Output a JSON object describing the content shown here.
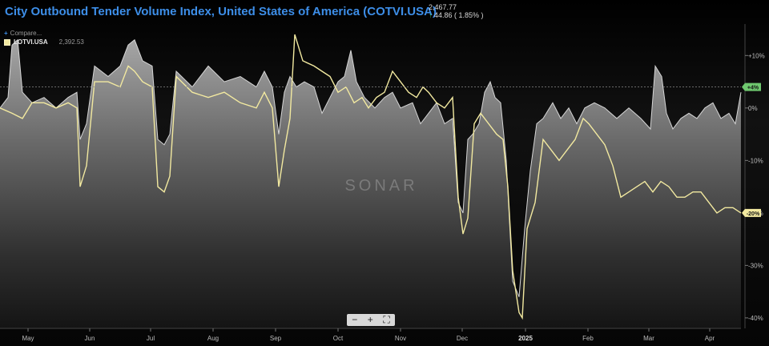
{
  "header": {
    "title": "City Outbound Tender Volume Index, United States of America (COTVI.USA)",
    "last_value": "2,467.77",
    "change_arrow": "↑",
    "change": "44.86 ( 1.85% )"
  },
  "compare_label": "Compare...",
  "legend": {
    "name": "LOTVI.USA",
    "value": "2,392.53"
  },
  "watermark": "SONAR",
  "zoom": {
    "minus": "−",
    "plus": "+",
    "fullscreen": "⛶"
  },
  "colors": {
    "background": "#000000",
    "title": "#3d8ee8",
    "area_line": "#ffffff",
    "lotvi_line": "#f2e9a0",
    "badge_green": "#6fc86f",
    "badge_yellow": "#f2e9a0"
  },
  "chart_data": {
    "type": "area",
    "x_axis": {
      "tick_labels": [
        "May",
        "Jun",
        "Jul",
        "Aug",
        "Sep",
        "Oct",
        "Nov",
        "Dec",
        "2025",
        "Feb",
        "Mar",
        "Apr"
      ]
    },
    "y_axis": {
      "unit": "% change",
      "ticks": [
        10,
        0,
        -10,
        -20,
        -30,
        -40
      ],
      "tick_labels": [
        "+10%",
        "0%",
        "-10%",
        "-20%",
        "-30%",
        "-40%"
      ],
      "ylim": [
        -42,
        16
      ]
    },
    "series": [
      {
        "name": "COTVI.USA",
        "style": "area",
        "current_label": "+4%",
        "points": [
          [
            0,
            0
          ],
          [
            10,
            2
          ],
          [
            15,
            12
          ],
          [
            22,
            13
          ],
          [
            28,
            3
          ],
          [
            40,
            1
          ],
          [
            55,
            2
          ],
          [
            70,
            0
          ],
          [
            85,
            2
          ],
          [
            96,
            3
          ],
          [
            100,
            -6
          ],
          [
            108,
            -3
          ],
          [
            118,
            8
          ],
          [
            135,
            6
          ],
          [
            150,
            8
          ],
          [
            160,
            12
          ],
          [
            168,
            13
          ],
          [
            178,
            9
          ],
          [
            190,
            8
          ],
          [
            197,
            -6
          ],
          [
            205,
            -7
          ],
          [
            212,
            -5
          ],
          [
            220,
            7
          ],
          [
            240,
            4
          ],
          [
            260,
            8
          ],
          [
            280,
            5
          ],
          [
            300,
            6
          ],
          [
            320,
            4
          ],
          [
            330,
            7
          ],
          [
            340,
            4
          ],
          [
            348,
            -5
          ],
          [
            355,
            3
          ],
          [
            362,
            6
          ],
          [
            370,
            4
          ],
          [
            380,
            5
          ],
          [
            392,
            4
          ],
          [
            402,
            -1
          ],
          [
            412,
            2
          ],
          [
            422,
            5
          ],
          [
            430,
            6
          ],
          [
            438,
            11
          ],
          [
            445,
            5
          ],
          [
            455,
            2
          ],
          [
            468,
            0
          ],
          [
            480,
            2
          ],
          [
            490,
            3
          ],
          [
            500,
            0
          ],
          [
            515,
            1
          ],
          [
            525,
            -3
          ],
          [
            535,
            -1
          ],
          [
            545,
            1
          ],
          [
            555,
            -3
          ],
          [
            565,
            -2
          ],
          [
            572,
            -18
          ],
          [
            578,
            -20
          ],
          [
            584,
            -6
          ],
          [
            590,
            -5
          ],
          [
            598,
            -3
          ],
          [
            605,
            3
          ],
          [
            612,
            5
          ],
          [
            618,
            2
          ],
          [
            625,
            1
          ],
          [
            632,
            -10
          ],
          [
            640,
            -33
          ],
          [
            648,
            -36
          ],
          [
            655,
            -23
          ],
          [
            662,
            -12
          ],
          [
            670,
            -3
          ],
          [
            678,
            -2
          ],
          [
            690,
            1
          ],
          [
            700,
            -2
          ],
          [
            710,
            0
          ],
          [
            720,
            -3
          ],
          [
            730,
            0
          ],
          [
            742,
            1
          ],
          [
            755,
            0
          ],
          [
            770,
            -2
          ],
          [
            785,
            0
          ],
          [
            800,
            -2
          ],
          [
            812,
            -4
          ],
          [
            818,
            8
          ],
          [
            826,
            6
          ],
          [
            832,
            -1
          ],
          [
            840,
            -4
          ],
          [
            850,
            -2
          ],
          [
            860,
            -1
          ],
          [
            870,
            -2
          ],
          [
            880,
            0
          ],
          [
            890,
            1
          ],
          [
            900,
            -2
          ],
          [
            910,
            -1
          ],
          [
            918,
            -3
          ],
          [
            925,
            3
          ]
        ]
      },
      {
        "name": "LOTVI.USA",
        "style": "line",
        "current_label": "-20%",
        "points": [
          [
            0,
            0
          ],
          [
            15,
            -1
          ],
          [
            28,
            -2
          ],
          [
            40,
            1
          ],
          [
            55,
            1
          ],
          [
            70,
            0
          ],
          [
            85,
            1
          ],
          [
            96,
            0
          ],
          [
            100,
            -15
          ],
          [
            108,
            -11
          ],
          [
            118,
            5
          ],
          [
            135,
            5
          ],
          [
            150,
            4
          ],
          [
            160,
            8
          ],
          [
            168,
            7
          ],
          [
            178,
            5
          ],
          [
            190,
            4
          ],
          [
            197,
            -15
          ],
          [
            205,
            -16
          ],
          [
            212,
            -13
          ],
          [
            220,
            6
          ],
          [
            240,
            3
          ],
          [
            260,
            2
          ],
          [
            280,
            3
          ],
          [
            300,
            1
          ],
          [
            320,
            0
          ],
          [
            330,
            3
          ],
          [
            340,
            0
          ],
          [
            348,
            -15
          ],
          [
            355,
            -8
          ],
          [
            362,
            -2
          ],
          [
            368,
            14
          ],
          [
            378,
            9
          ],
          [
            392,
            8
          ],
          [
            402,
            7
          ],
          [
            412,
            6
          ],
          [
            422,
            3
          ],
          [
            432,
            4
          ],
          [
            442,
            1
          ],
          [
            452,
            2
          ],
          [
            460,
            0
          ],
          [
            470,
            2
          ],
          [
            480,
            3
          ],
          [
            490,
            7
          ],
          [
            500,
            5
          ],
          [
            510,
            3
          ],
          [
            520,
            2
          ],
          [
            528,
            4
          ],
          [
            535,
            3
          ],
          [
            545,
            1
          ],
          [
            555,
            0
          ],
          [
            565,
            2
          ],
          [
            572,
            -17
          ],
          [
            578,
            -24
          ],
          [
            584,
            -21
          ],
          [
            592,
            -3
          ],
          [
            600,
            -1
          ],
          [
            610,
            -3
          ],
          [
            620,
            -5
          ],
          [
            628,
            -6
          ],
          [
            634,
            -15
          ],
          [
            640,
            -31
          ],
          [
            648,
            -39
          ],
          [
            652,
            -40
          ],
          [
            658,
            -23
          ],
          [
            668,
            -18
          ],
          [
            678,
            -6
          ],
          [
            688,
            -8
          ],
          [
            698,
            -10
          ],
          [
            708,
            -8
          ],
          [
            718,
            -6
          ],
          [
            728,
            -2
          ],
          [
            735,
            -3
          ],
          [
            745,
            -5
          ],
          [
            755,
            -7
          ],
          [
            765,
            -11
          ],
          [
            775,
            -17
          ],
          [
            785,
            -16
          ],
          [
            795,
            -15
          ],
          [
            805,
            -14
          ],
          [
            815,
            -16
          ],
          [
            825,
            -14
          ],
          [
            835,
            -15
          ],
          [
            845,
            -17
          ],
          [
            855,
            -17
          ],
          [
            865,
            -16
          ],
          [
            875,
            -16
          ],
          [
            885,
            -18
          ],
          [
            895,
            -20
          ],
          [
            905,
            -19
          ],
          [
            915,
            -19
          ],
          [
            925,
            -20
          ]
        ]
      }
    ],
    "grid": false,
    "legend_position": "top-left",
    "annotations": [
      "SONAR"
    ]
  }
}
